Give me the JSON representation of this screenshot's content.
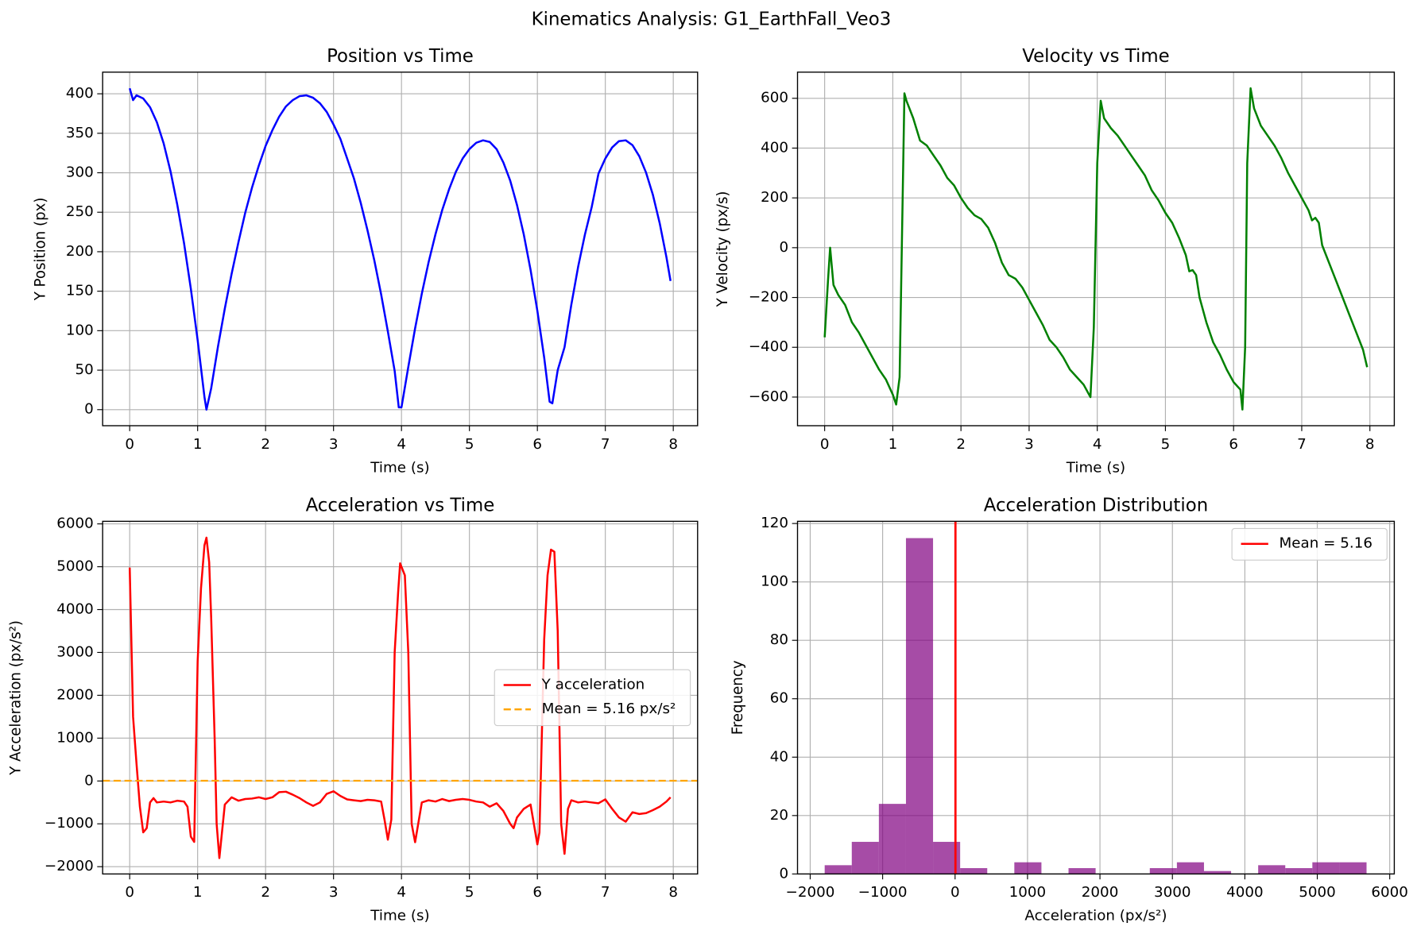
{
  "title": "Kinematics Analysis: G1_EarthFall_Veo3",
  "chart_data": [
    {
      "type": "line",
      "title": "Position vs Time",
      "xlabel": "Time (s)",
      "ylabel": "Y Position (px)",
      "grid": true,
      "xlim": [
        -0.398,
        8.358
      ],
      "ylim": [
        -20.35,
        427.4
      ],
      "xticks": [
        0,
        1,
        2,
        3,
        4,
        5,
        6,
        7,
        8
      ],
      "yticks": [
        0,
        50,
        100,
        150,
        200,
        250,
        300,
        350,
        400
      ],
      "series": [
        {
          "color": "#0000ff",
          "x": [
            0,
            0.05,
            0.1,
            0.2,
            0.3,
            0.4,
            0.5,
            0.6,
            0.7,
            0.8,
            0.9,
            1.0,
            1.1,
            1.13,
            1.2,
            1.3,
            1.4,
            1.5,
            1.6,
            1.7,
            1.8,
            1.9,
            2.0,
            2.1,
            2.2,
            2.3,
            2.4,
            2.5,
            2.6,
            2.7,
            2.8,
            2.9,
            3.0,
            3.1,
            3.2,
            3.3,
            3.4,
            3.5,
            3.6,
            3.7,
            3.8,
            3.9,
            3.96,
            4.0,
            4.1,
            4.2,
            4.3,
            4.4,
            4.5,
            4.6,
            4.7,
            4.8,
            4.9,
            5.0,
            5.1,
            5.2,
            5.3,
            5.4,
            5.5,
            5.6,
            5.7,
            5.8,
            5.9,
            6.0,
            6.1,
            6.18,
            6.22,
            6.3,
            6.4,
            6.5,
            6.6,
            6.7,
            6.8,
            6.9,
            7.0,
            7.1,
            7.2,
            7.3,
            7.4,
            7.5,
            7.6,
            7.7,
            7.8,
            7.9,
            7.96
          ],
          "values": [
            407,
            392,
            398,
            394,
            383,
            364,
            337,
            302,
            260,
            211,
            153,
            88,
            16,
            0,
            27,
            80,
            128,
            172,
            212,
            249,
            281,
            309,
            334,
            354,
            371,
            384,
            392,
            397,
            398,
            395,
            388,
            377,
            361,
            343,
            318,
            293,
            262,
            227,
            189,
            146,
            99,
            49,
            3,
            3,
            54,
            103,
            147,
            187,
            222,
            253,
            279,
            301,
            318,
            330,
            338,
            341,
            339,
            330,
            313,
            290,
            259,
            222,
            177,
            125,
            66,
            10,
            8,
            50,
            79,
            133,
            181,
            222,
            257,
            299,
            318,
            332,
            340,
            341,
            335,
            321,
            300,
            272,
            236,
            193,
            163
          ]
        }
      ]
    },
    {
      "type": "line",
      "title": "Velocity vs Time",
      "xlabel": "Time (s)",
      "ylabel": "Y Velocity (px/s)",
      "grid": true,
      "xlim": [
        -0.398,
        8.358
      ],
      "ylim": [
        -715,
        705
      ],
      "xticks": [
        0,
        1,
        2,
        3,
        4,
        5,
        6,
        7,
        8
      ],
      "yticks": [
        {
          "value": -600,
          "label": "−600"
        },
        {
          "value": -400,
          "label": "−400"
        },
        {
          "value": -200,
          "label": "−200"
        },
        0,
        200,
        400,
        600
      ],
      "series": [
        {
          "color": "#008000",
          "x": [
            0,
            0.05,
            0.08,
            0.13,
            0.2,
            0.3,
            0.4,
            0.5,
            0.6,
            0.7,
            0.8,
            0.9,
            1.0,
            1.05,
            1.1,
            1.17,
            1.2,
            1.3,
            1.4,
            1.5,
            1.6,
            1.7,
            1.8,
            1.9,
            2.0,
            2.1,
            2.2,
            2.3,
            2.4,
            2.5,
            2.6,
            2.7,
            2.8,
            2.9,
            3.0,
            3.1,
            3.2,
            3.3,
            3.4,
            3.5,
            3.6,
            3.7,
            3.8,
            3.9,
            3.95,
            4.0,
            4.05,
            4.1,
            4.2,
            4.3,
            4.4,
            4.5,
            4.6,
            4.7,
            4.8,
            4.9,
            5.0,
            5.1,
            5.2,
            5.3,
            5.35,
            5.4,
            5.45,
            5.5,
            5.6,
            5.7,
            5.8,
            5.9,
            6.0,
            6.1,
            6.13,
            6.17,
            6.2,
            6.25,
            6.3,
            6.4,
            6.5,
            6.6,
            6.7,
            6.8,
            6.9,
            7.0,
            7.1,
            7.15,
            7.2,
            7.25,
            7.3,
            7.4,
            7.5,
            7.6,
            7.7,
            7.8,
            7.9,
            7.96
          ],
          "values": [
            -360,
            -130,
            0,
            -150,
            -190,
            -230,
            -300,
            -340,
            -390,
            -440,
            -490,
            -530,
            -590,
            -630,
            -520,
            620,
            590,
            520,
            430,
            410,
            370,
            330,
            280,
            250,
            200,
            160,
            130,
            115,
            80,
            20,
            -60,
            -110,
            -125,
            -160,
            -210,
            -260,
            -310,
            -370,
            -400,
            -440,
            -490,
            -520,
            -550,
            -600,
            -320,
            340,
            590,
            520,
            480,
            450,
            410,
            370,
            330,
            290,
            230,
            190,
            140,
            100,
            40,
            -30,
            -95,
            -90,
            -110,
            -200,
            -300,
            -380,
            -430,
            -490,
            -540,
            -570,
            -650,
            -400,
            340,
            640,
            560,
            490,
            450,
            410,
            360,
            300,
            250,
            200,
            150,
            110,
            120,
            100,
            10,
            -60,
            -130,
            -200,
            -270,
            -340,
            -410,
            -480
          ]
        }
      ]
    },
    {
      "type": "line",
      "title": "Acceleration vs Time",
      "xlabel": "Time (s)",
      "ylabel": "Y Acceleration (px/s²)",
      "grid": true,
      "legend": "center right",
      "xlim": [
        -0.398,
        8.358
      ],
      "ylim": [
        -2170,
        6060
      ],
      "xticks": [
        0,
        1,
        2,
        3,
        4,
        5,
        6,
        7,
        8
      ],
      "yticks": [
        {
          "value": -2000,
          "label": "−2000"
        },
        {
          "value": -1000,
          "label": "−1000"
        },
        0,
        1000,
        2000,
        3000,
        4000,
        5000,
        6000
      ],
      "series": [
        {
          "name": "Y acceleration",
          "color": "#ff0000",
          "x": [
            0,
            0.05,
            0.1,
            0.15,
            0.2,
            0.25,
            0.3,
            0.35,
            0.4,
            0.5,
            0.6,
            0.7,
            0.8,
            0.85,
            0.9,
            0.95,
            1.0,
            1.05,
            1.1,
            1.13,
            1.17,
            1.2,
            1.25,
            1.28,
            1.32,
            1.4,
            1.5,
            1.6,
            1.7,
            1.8,
            1.9,
            2.0,
            2.1,
            2.2,
            2.3,
            2.4,
            2.5,
            2.6,
            2.7,
            2.8,
            2.9,
            3.0,
            3.1,
            3.2,
            3.3,
            3.4,
            3.5,
            3.6,
            3.7,
            3.75,
            3.8,
            3.85,
            3.9,
            3.95,
            3.98,
            4.05,
            4.1,
            4.15,
            4.2,
            4.3,
            4.4,
            4.5,
            4.6,
            4.7,
            4.8,
            4.9,
            5.0,
            5.1,
            5.2,
            5.3,
            5.4,
            5.5,
            5.6,
            5.65,
            5.7,
            5.8,
            5.9,
            6.0,
            6.03,
            6.1,
            6.15,
            6.2,
            6.25,
            6.3,
            6.35,
            6.4,
            6.45,
            6.5,
            6.6,
            6.7,
            6.8,
            6.9,
            7.0,
            7.1,
            7.2,
            7.3,
            7.4,
            7.5,
            7.6,
            7.7,
            7.8,
            7.9,
            7.96
          ],
          "values": [
            4980,
            1500,
            400,
            -600,
            -1200,
            -1100,
            -500,
            -400,
            -500,
            -480,
            -500,
            -460,
            -480,
            -600,
            -1300,
            -1420,
            2800,
            4500,
            5500,
            5680,
            5100,
            3800,
            1000,
            -1000,
            -1800,
            -550,
            -380,
            -460,
            -420,
            -410,
            -380,
            -420,
            -380,
            -260,
            -250,
            -320,
            -400,
            -500,
            -580,
            -500,
            -300,
            -240,
            -350,
            -430,
            -450,
            -470,
            -440,
            -450,
            -480,
            -900,
            -1370,
            -900,
            3000,
            4400,
            5080,
            4800,
            3000,
            -1000,
            -1430,
            -500,
            -450,
            -480,
            -420,
            -470,
            -440,
            -420,
            -440,
            -480,
            -500,
            -600,
            -520,
            -700,
            -1000,
            -1100,
            -850,
            -650,
            -550,
            -1480,
            -1200,
            3300,
            4800,
            5400,
            5350,
            3500,
            -1000,
            -1700,
            -650,
            -450,
            -500,
            -480,
            -500,
            -520,
            -430,
            -650,
            -850,
            -950,
            -730,
            -770,
            -750,
            -680,
            -600,
            -480,
            -380
          ]
        }
      ],
      "hlines": [
        {
          "name": "Mean = 5.16 px/s²",
          "y": 5.16,
          "color": "#ffa500",
          "dashed": true
        }
      ]
    },
    {
      "type": "histogram",
      "title": "Acceleration Distribution",
      "xlabel": "Acceleration (px/s²)",
      "ylabel": "Frequency",
      "grid": true,
      "legend": "upper right",
      "xlim": [
        -2175,
        6063
      ],
      "ylim": [
        0,
        120.75
      ],
      "xticks": [
        {
          "value": -2000,
          "label": "−2000"
        },
        {
          "value": -1000,
          "label": "−1000"
        },
        0,
        1000,
        2000,
        3000,
        4000,
        5000,
        6000
      ],
      "yticks": [
        0,
        20,
        40,
        60,
        80,
        100,
        120
      ],
      "color": "#800080",
      "alpha": 0.7,
      "bins": [
        -1800,
        -1426,
        -1052,
        -678,
        -304,
        70,
        444,
        818,
        1192,
        1566,
        1940,
        2314,
        2688,
        3062,
        3436,
        3810,
        4184,
        4558,
        4932,
        5306,
        5680
      ],
      "values": [
        3,
        11,
        24,
        115,
        11,
        2,
        0,
        4,
        0,
        2,
        0,
        0,
        2,
        4,
        1,
        0,
        3,
        2,
        4,
        4
      ],
      "vlines": [
        {
          "name": "Mean = 5.16",
          "x": 5.16,
          "color": "#ff0000"
        }
      ]
    }
  ]
}
